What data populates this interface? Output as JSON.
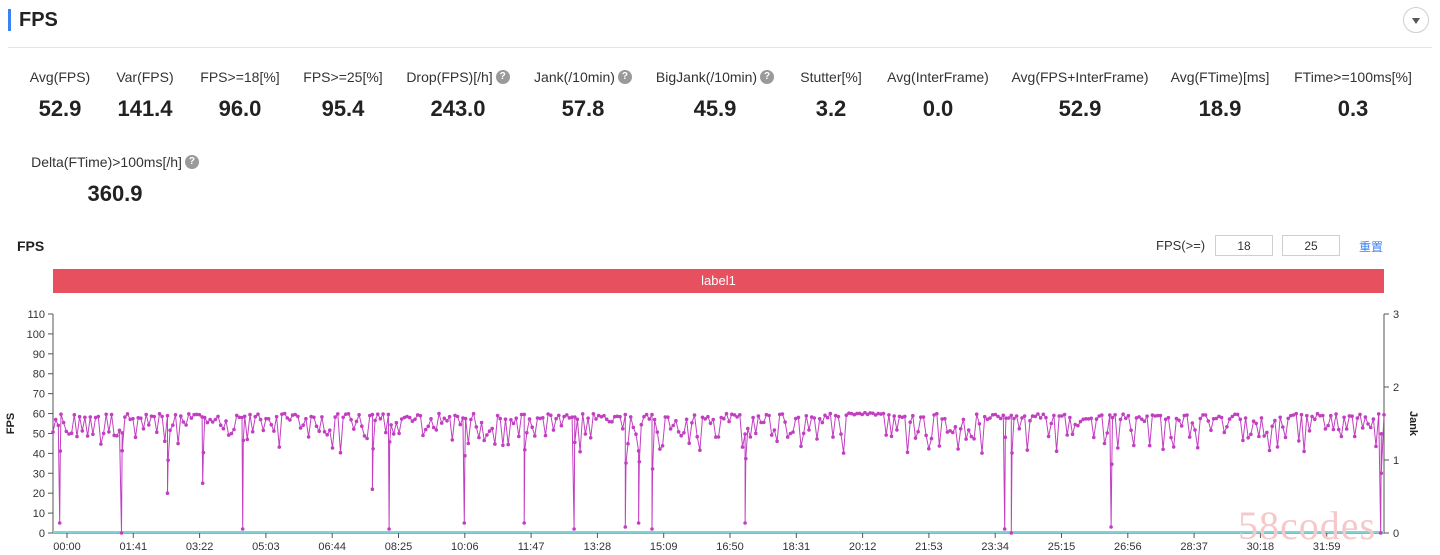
{
  "header": {
    "title": "FPS"
  },
  "metrics": [
    {
      "label": "Avg(FPS)",
      "value": "52.9",
      "help": false,
      "cx": 60,
      "row": 0
    },
    {
      "label": "Var(FPS)",
      "value": "141.4",
      "help": false,
      "cx": 145,
      "row": 0
    },
    {
      "label": "FPS>=18[%]",
      "value": "96.0",
      "help": false,
      "cx": 240,
      "row": 0
    },
    {
      "label": "FPS>=25[%]",
      "value": "95.4",
      "help": false,
      "cx": 343,
      "row": 0
    },
    {
      "label": "Drop(FPS)[/h]",
      "value": "243.0",
      "help": true,
      "cx": 458,
      "row": 0
    },
    {
      "label": "Jank(/10min)",
      "value": "57.8",
      "help": true,
      "cx": 583,
      "row": 0
    },
    {
      "label": "BigJank(/10min)",
      "value": "45.9",
      "help": true,
      "cx": 715,
      "row": 0
    },
    {
      "label": "Stutter[%]",
      "value": "3.2",
      "help": false,
      "cx": 831,
      "row": 0
    },
    {
      "label": "Avg(InterFrame)",
      "value": "0.0",
      "help": false,
      "cx": 938,
      "row": 0
    },
    {
      "label": "Avg(FPS+InterFrame)",
      "value": "52.9",
      "help": false,
      "cx": 1080,
      "row": 0
    },
    {
      "label": "Avg(FTime)[ms]",
      "value": "18.9",
      "help": false,
      "cx": 1220,
      "row": 0
    },
    {
      "label": "FTime>=100ms[%]",
      "value": "0.3",
      "help": false,
      "cx": 1353,
      "row": 0
    },
    {
      "label": "Delta(FTime)>100ms[/h]",
      "value": "360.9",
      "help": true,
      "cx": 115,
      "row": 1
    }
  ],
  "chart_panel": {
    "title": "FPS",
    "threshold_label": "FPS(>=)",
    "threshold_low": "18",
    "threshold_high": "25",
    "reset_label": "重置",
    "label_bar": "label1"
  },
  "chart_data": {
    "type": "line",
    "xlabel": "",
    "ylabel": "FPS",
    "y2label": "Jank",
    "ylim": [
      0,
      110
    ],
    "y2lim": [
      0,
      3
    ],
    "yticks": [
      0,
      10,
      20,
      30,
      40,
      50,
      60,
      70,
      80,
      90,
      100,
      110
    ],
    "y2ticks": [
      0,
      1,
      2,
      3
    ],
    "xticks": [
      "00:00",
      "01:41",
      "03:22",
      "05:03",
      "06:44",
      "08:25",
      "10:06",
      "11:47",
      "13:28",
      "15:09",
      "16:50",
      "18:31",
      "20:12",
      "21:53",
      "23:34",
      "25:15",
      "26:56",
      "28:37",
      "30:18",
      "31:59"
    ],
    "duration_seconds": 2000,
    "series": [
      {
        "color": "#c23fc2",
        "baseline_fps": 55,
        "dips": [
          {
            "t": 10,
            "fps": 5
          },
          {
            "t": 103,
            "fps": 0
          },
          {
            "t": 172,
            "fps": 20
          },
          {
            "t": 225,
            "fps": 25
          },
          {
            "t": 285,
            "fps": 2
          },
          {
            "t": 480,
            "fps": 22
          },
          {
            "t": 505,
            "fps": 2
          },
          {
            "t": 618,
            "fps": 5
          },
          {
            "t": 708,
            "fps": 5
          },
          {
            "t": 783,
            "fps": 2
          },
          {
            "t": 860,
            "fps": 3
          },
          {
            "t": 880,
            "fps": 5
          },
          {
            "t": 900,
            "fps": 2
          },
          {
            "t": 1040,
            "fps": 5
          },
          {
            "t": 1430,
            "fps": 2
          },
          {
            "t": 1440,
            "fps": 0
          },
          {
            "t": 1590,
            "fps": 3
          },
          {
            "t": 1995,
            "fps": 0
          }
        ]
      },
      {
        "name": "Jank",
        "color": "#7fd3d6",
        "constant": 0
      }
    ]
  }
}
